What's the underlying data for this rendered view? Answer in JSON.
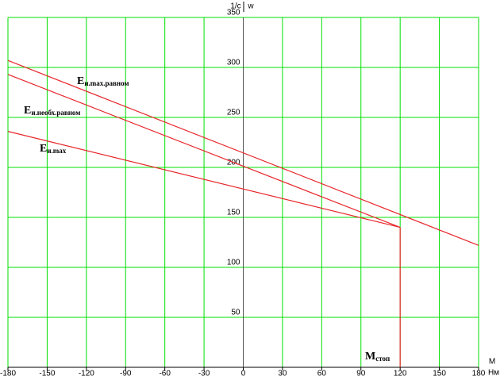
{
  "chart_data": {
    "type": "line",
    "y_label_left": "1/c",
    "y_label_right": "w",
    "x_label_top": "М",
    "x_label_bottom": "Нм",
    "xlim": [
      -180,
      180
    ],
    "ylim": [
      0,
      350
    ],
    "xticks": [
      -180,
      -150,
      -120,
      -90,
      -60,
      -30,
      0,
      30,
      60,
      90,
      120,
      150,
      180
    ],
    "yticks": [
      50,
      100,
      150,
      200,
      250,
      300,
      350
    ],
    "grid": true,
    "grid_color": "#00e000",
    "series": [
      {
        "label": {
          "base": "E",
          "sub": "и.max.равном"
        },
        "color": "#e8272b",
        "x": [
          -180,
          180
        ],
        "values": [
          307,
          122
        ]
      },
      {
        "label": {
          "base": "E",
          "sub": "и.необх.равном"
        },
        "color": "#e8272b",
        "x": [
          -180,
          120
        ],
        "values": [
          293,
          140
        ]
      },
      {
        "label": {
          "base": "E",
          "sub": "и.max"
        },
        "color": "#e8272b",
        "x": [
          -180,
          120
        ],
        "values": [
          236,
          140
        ]
      },
      {
        "label": {
          "base": "M",
          "sub": "стоп"
        },
        "color": "#e8272b",
        "x": [
          120,
          120
        ],
        "values": [
          140,
          0
        ]
      }
    ]
  }
}
